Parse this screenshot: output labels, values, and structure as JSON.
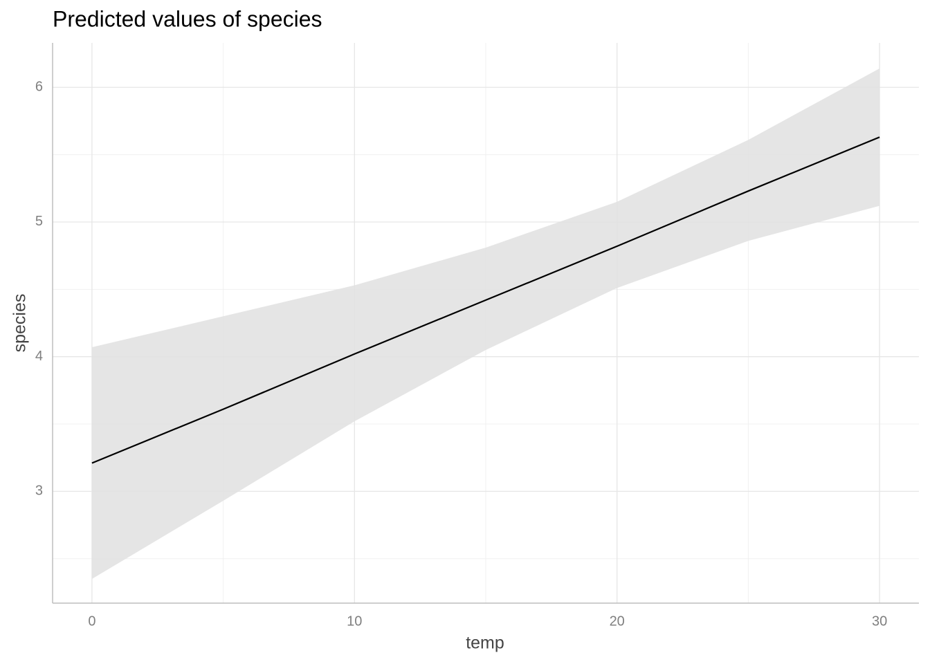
{
  "chart_data": {
    "type": "line",
    "title": "Predicted values of species",
    "x_label": "temp",
    "y_label": "species",
    "x": [
      0,
      5,
      10,
      15,
      20,
      25,
      30
    ],
    "values": [
      3.21,
      3.61,
      4.02,
      4.42,
      4.82,
      5.23,
      5.63
    ],
    "lower": [
      2.35,
      2.93,
      3.52,
      4.05,
      4.51,
      4.86,
      5.12
    ],
    "upper": [
      4.07,
      4.3,
      4.53,
      4.81,
      5.15,
      5.61,
      6.14
    ],
    "color": "#000000",
    "band_color": "#e0e0e0",
    "xlim": [
      -1.5,
      31.5
    ],
    "ylim": [
      2.17,
      6.33
    ],
    "xticks": [
      0,
      10,
      20,
      30
    ],
    "yticks": [
      3,
      4,
      5,
      6
    ],
    "xminor": [
      5,
      15,
      25
    ],
    "yminor": [
      2.5,
      3.5,
      4.5,
      5.5
    ],
    "grid": true
  }
}
